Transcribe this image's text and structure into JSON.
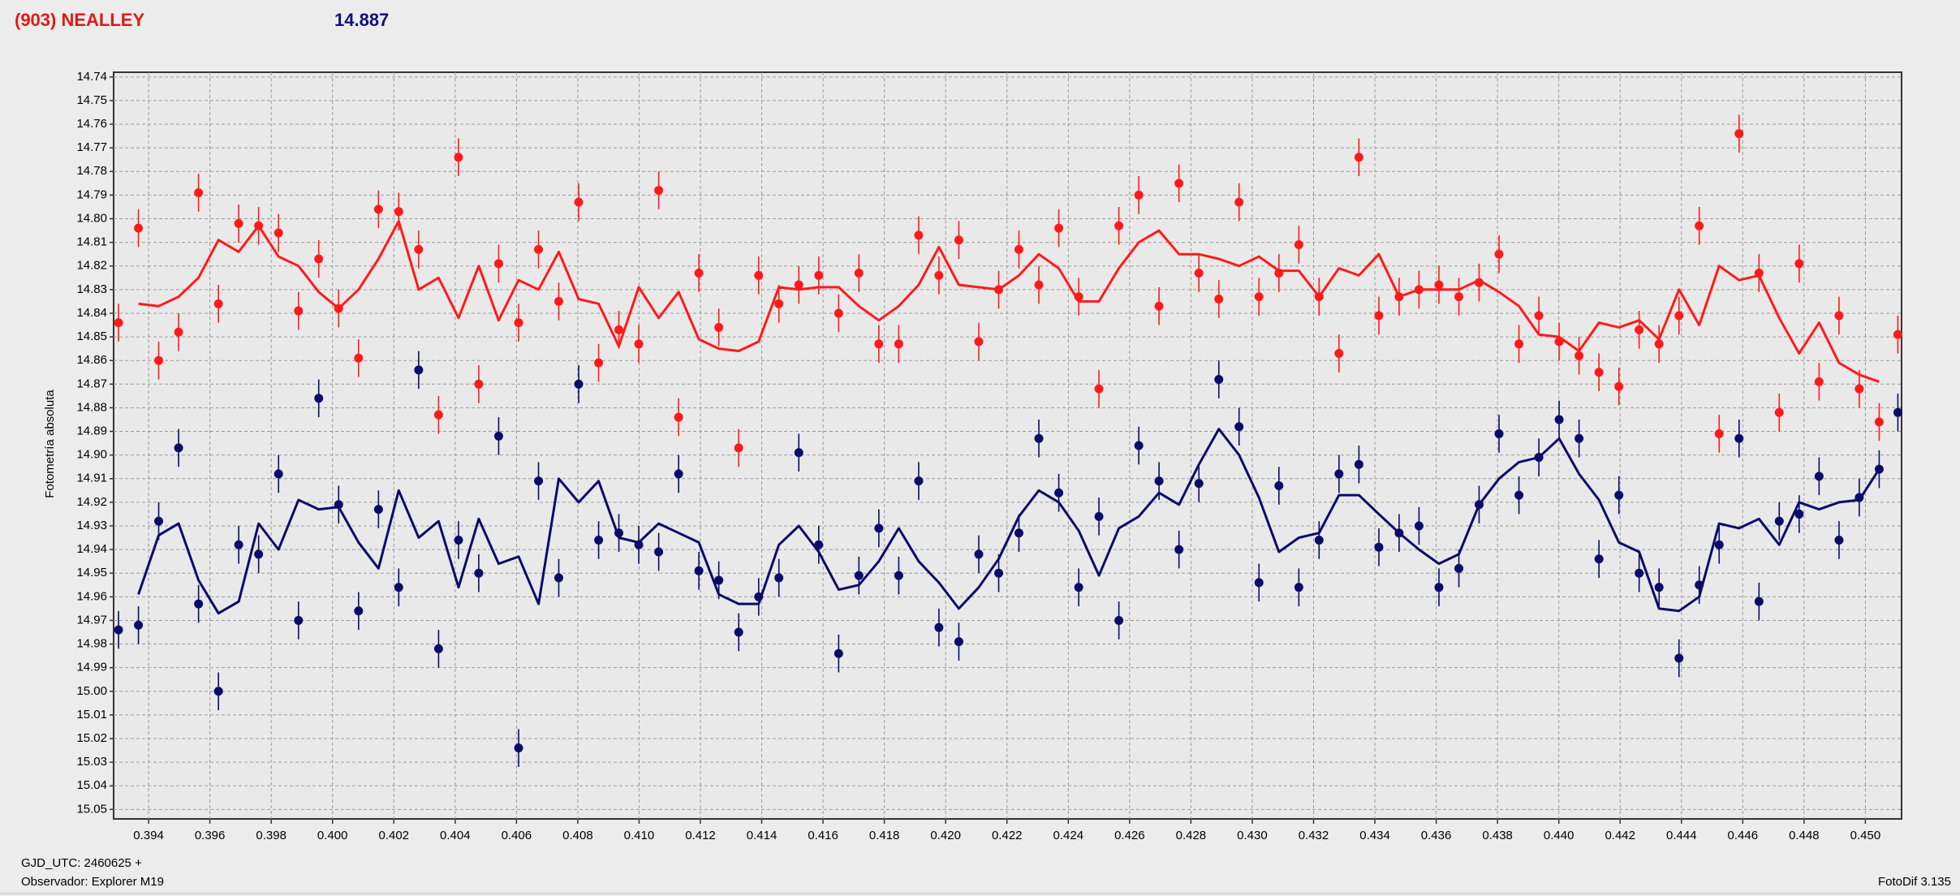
{
  "chart_data": {
    "type": "scatter",
    "title": "(903) NEALLEY",
    "subtitle": "14.887",
    "y_label": "Fotometría absoluta",
    "footer_lines": [
      "GJD_UTC: 2460625 +",
      "Observador: Explorer M19"
    ],
    "software": "FotoDif 3.135",
    "xlim": [
      0.39286,
      0.45118
    ],
    "ylim": [
      14.738,
      15.054
    ],
    "y_inverted": true,
    "grid": true,
    "xticks": [
      0.394,
      0.396,
      0.398,
      {
        "value": 0.4,
        "label": "0.400"
      },
      0.402,
      0.404,
      0.406,
      0.408,
      {
        "value": 0.41,
        "label": "0.410"
      },
      0.412,
      0.414,
      0.416,
      0.418,
      {
        "value": 0.42,
        "label": "0.420"
      },
      0.422,
      0.424,
      0.426,
      0.428,
      {
        "value": 0.43,
        "label": "0.430"
      },
      0.432,
      0.434,
      0.436,
      0.438,
      {
        "value": 0.44,
        "label": "0.440"
      },
      0.442,
      0.444,
      0.446,
      0.448,
      {
        "value": 0.45,
        "label": "0.450"
      }
    ],
    "yticks": [
      14.74,
      14.75,
      14.76,
      14.77,
      14.78,
      14.79,
      {
        "value": 14.8,
        "label": "14.80"
      },
      14.81,
      14.82,
      14.83,
      14.84,
      14.85,
      14.86,
      14.87,
      14.88,
      14.89,
      {
        "value": 14.9,
        "label": "14.90"
      },
      14.91,
      14.92,
      14.93,
      14.94,
      14.95,
      14.96,
      14.97,
      14.98,
      14.99,
      {
        "value": 15,
        "label": "15.00"
      },
      15.01,
      15.02,
      15.03,
      15.04,
      15.05
    ],
    "x": [
      0.39302,
      0.39367,
      0.39433,
      0.39498,
      0.39563,
      0.39628,
      0.39694,
      0.39759,
      0.39824,
      0.39889,
      0.39955,
      0.4002,
      0.40085,
      0.4015,
      0.40216,
      0.40281,
      0.40346,
      0.40411,
      0.40477,
      0.40542,
      0.40607,
      0.40672,
      0.40738,
      0.40803,
      0.40868,
      0.40934,
      0.40999,
      0.41064,
      0.41129,
      0.41195,
      0.4126,
      0.41325,
      0.4139,
      0.41456,
      0.41521,
      0.41586,
      0.41651,
      0.41717,
      0.41782,
      0.41847,
      0.41912,
      0.41978,
      0.42043,
      0.42108,
      0.42173,
      0.42239,
      0.42304,
      0.42369,
      0.42434,
      0.425,
      0.42565,
      0.4263,
      0.42696,
      0.42761,
      0.42826,
      0.42891,
      0.42957,
      0.43022,
      0.43087,
      0.43152,
      0.43218,
      0.43283,
      0.43348,
      0.43413,
      0.43479,
      0.43544,
      0.43609,
      0.43674,
      0.4374,
      0.43805,
      0.4387,
      0.43935,
      0.44001,
      0.44066,
      0.44131,
      0.44196,
      0.44262,
      0.44327,
      0.44392,
      0.44458,
      0.44523,
      0.44588,
      0.44653,
      0.44719,
      0.44784,
      0.44849,
      0.44914,
      0.4498,
      0.45045,
      0.45106
    ],
    "series": [
      {
        "style": "points",
        "color": "#ff1a1a",
        "error": 0.008,
        "values": [
          14.844,
          14.804,
          14.86,
          14.848,
          14.789,
          14.836,
          14.802,
          14.803,
          14.806,
          14.839,
          14.817,
          14.838,
          14.859,
          14.796,
          14.797,
          14.813,
          14.883,
          14.774,
          14.87,
          14.819,
          14.844,
          14.813,
          14.835,
          14.793,
          14.861,
          14.847,
          14.853,
          14.788,
          14.884,
          14.823,
          14.846,
          14.897,
          14.824,
          14.836,
          14.828,
          14.824,
          14.84,
          14.823,
          14.853,
          14.853,
          14.807,
          14.824,
          14.809,
          14.852,
          14.83,
          14.813,
          14.828,
          14.804,
          14.833,
          14.872,
          14.803,
          14.79,
          14.837,
          14.785,
          14.823,
          14.834,
          14.793,
          14.833,
          14.823,
          14.811,
          14.833,
          14.857,
          14.774,
          14.841,
          14.833,
          14.83,
          14.828,
          14.833,
          14.827,
          14.815,
          14.853,
          14.841,
          14.852,
          14.858,
          14.865,
          14.871,
          14.847,
          14.853,
          14.841,
          14.803,
          14.891,
          14.764,
          14.823,
          14.882,
          14.819,
          14.869,
          14.841,
          14.872,
          14.886,
          14.849
        ]
      },
      {
        "style": "points",
        "color": "#0b0b6b",
        "error": 0.008,
        "values": [
          14.974,
          14.972,
          14.928,
          14.897,
          14.963,
          15.0,
          14.938,
          14.942,
          14.908,
          14.97,
          14.876,
          14.921,
          14.966,
          14.923,
          14.956,
          14.864,
          14.982,
          14.936,
          14.95,
          14.892,
          15.024,
          14.911,
          14.952,
          14.87,
          14.936,
          14.933,
          14.938,
          14.941,
          14.908,
          14.949,
          14.953,
          14.975,
          14.96,
          14.952,
          14.899,
          14.938,
          14.984,
          14.951,
          14.931,
          14.951,
          14.911,
          14.973,
          14.979,
          14.942,
          14.95,
          14.933,
          14.893,
          14.916,
          14.956,
          14.926,
          14.97,
          14.896,
          14.911,
          14.94,
          14.912,
          14.868,
          14.888,
          14.954,
          14.913,
          14.956,
          14.936,
          14.908,
          14.904,
          14.939,
          14.933,
          14.93,
          14.956,
          14.948,
          14.921,
          14.891,
          14.917,
          14.901,
          14.885,
          14.893,
          14.944,
          14.917,
          14.95,
          14.956,
          14.986,
          14.955,
          14.938,
          14.893,
          14.962,
          14.928,
          14.925,
          14.909,
          14.936,
          14.918,
          14.906,
          14.882
        ]
      },
      {
        "style": "line",
        "color": "#ff1a1a",
        "values": [
          null,
          14.836,
          14.837,
          14.833,
          14.825,
          14.809,
          14.814,
          14.803,
          14.816,
          14.82,
          14.831,
          14.838,
          14.83,
          14.817,
          14.801,
          14.83,
          14.825,
          14.842,
          14.82,
          14.843,
          14.826,
          14.83,
          14.814,
          14.834,
          14.836,
          14.854,
          14.829,
          14.842,
          14.831,
          14.851,
          14.855,
          14.856,
          14.852,
          14.829,
          14.83,
          14.829,
          14.829,
          14.837,
          14.843,
          14.837,
          14.828,
          14.812,
          14.828,
          14.829,
          14.83,
          14.824,
          14.815,
          14.821,
          14.835,
          14.835,
          14.821,
          14.81,
          14.805,
          14.815,
          14.815,
          14.817,
          14.82,
          14.816,
          14.822,
          14.822,
          14.833,
          14.821,
          14.824,
          14.815,
          14.833,
          14.83,
          14.83,
          14.83,
          14.826,
          14.831,
          14.837,
          14.849,
          14.85,
          14.856,
          14.844,
          14.846,
          14.843,
          14.851,
          14.83,
          14.845,
          14.82,
          14.826,
          14.824,
          14.842,
          14.857,
          14.844,
          14.861,
          14.866,
          14.869,
          null
        ]
      },
      {
        "style": "line",
        "color": "#0b0b6b",
        "values": [
          null,
          14.959,
          14.934,
          14.929,
          14.953,
          14.967,
          14.962,
          14.929,
          14.94,
          14.919,
          14.923,
          14.922,
          14.937,
          14.948,
          14.915,
          14.935,
          14.928,
          14.956,
          14.927,
          14.946,
          14.943,
          14.963,
          14.91,
          14.92,
          14.911,
          14.935,
          14.937,
          14.929,
          14.933,
          14.937,
          14.959,
          14.963,
          14.963,
          14.938,
          14.93,
          14.941,
          14.957,
          14.955,
          14.945,
          14.931,
          14.945,
          14.954,
          14.965,
          14.956,
          14.944,
          14.926,
          14.915,
          14.92,
          14.932,
          14.951,
          14.931,
          14.926,
          14.916,
          14.921,
          14.904,
          14.889,
          14.9,
          14.918,
          14.941,
          14.935,
          14.933,
          14.917,
          14.917,
          14.925,
          14.933,
          14.94,
          14.946,
          14.942,
          14.921,
          14.91,
          14.903,
          14.901,
          14.893,
          14.908,
          14.919,
          14.937,
          14.941,
          14.965,
          14.966,
          14.96,
          14.929,
          14.931,
          14.927,
          14.938,
          14.92,
          14.923,
          14.92,
          14.919,
          14.906,
          null
        ]
      }
    ]
  }
}
